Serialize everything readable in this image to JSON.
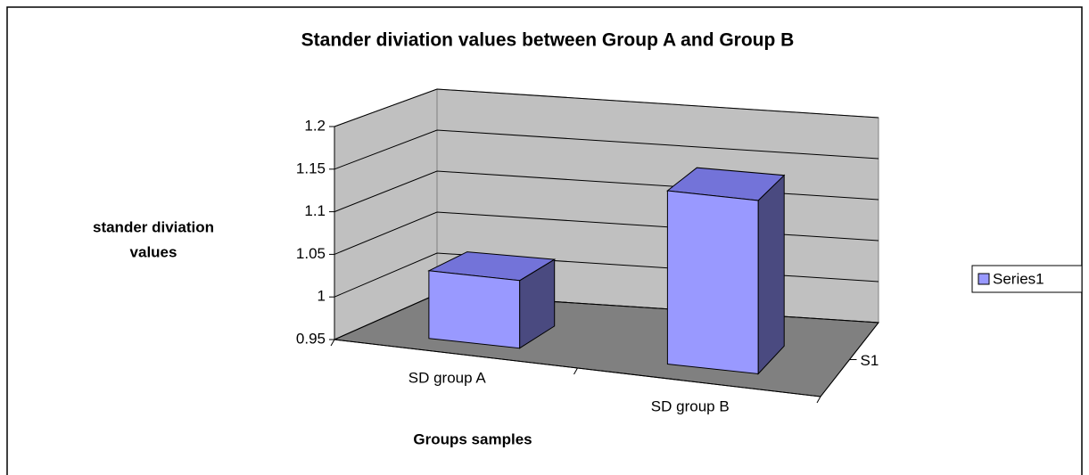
{
  "chart_data": {
    "type": "bar3d",
    "title": "Stander diviation values between Group A and Group B",
    "x_label": "Groups samples",
    "y_label": [
      "stander diviation",
      "values"
    ],
    "categories": [
      "SD group A",
      "SD group B"
    ],
    "series_axis_labels": [
      "S1"
    ],
    "series": [
      {
        "name": "Series1",
        "color": "#9999ff",
        "values": [
          1.03,
          1.155
        ]
      }
    ],
    "ylim": [
      0.95,
      1.2
    ],
    "yticks": [
      0.95,
      1,
      1.05,
      1.1,
      1.15,
      1.2
    ],
    "grid": true,
    "legend": "right"
  }
}
